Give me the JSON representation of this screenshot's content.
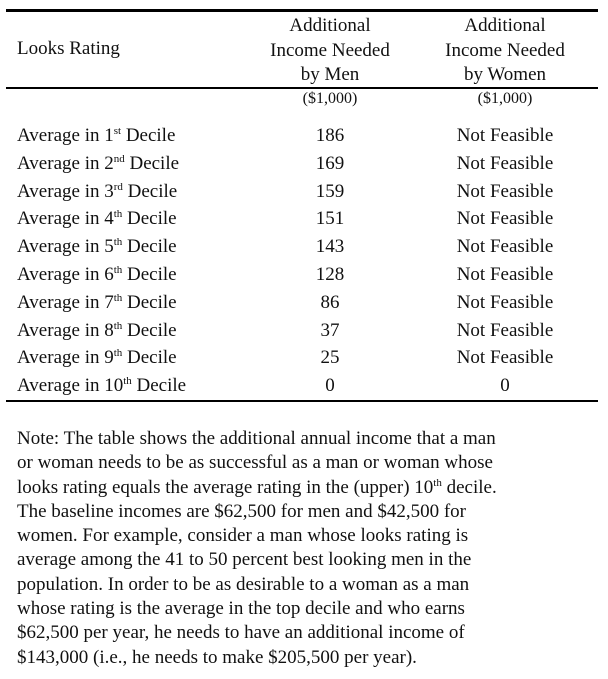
{
  "table": {
    "headers": {
      "looks": "Looks Rating",
      "men": [
        "Additional",
        "Income Needed",
        "by Men"
      ],
      "men_unit": "($1,000)",
      "women": [
        "Additional",
        "Income Needed",
        "by Women"
      ],
      "women_unit": "($1,000)"
    },
    "rows": [
      {
        "prefix": "Average in 1",
        "ord": "st",
        "suffix": " Decile",
        "men": "186",
        "women": "Not Feasible"
      },
      {
        "prefix": "Average in 2",
        "ord": "nd",
        "suffix": " Decile",
        "men": "169",
        "women": "Not Feasible"
      },
      {
        "prefix": "Average in 3",
        "ord": "rd",
        "suffix": " Decile",
        "men": "159",
        "women": "Not Feasible"
      },
      {
        "prefix": "Average in 4",
        "ord": "th",
        "suffix": " Decile",
        "men": "151",
        "women": "Not Feasible"
      },
      {
        "prefix": "Average in 5",
        "ord": "th",
        "suffix": " Decile",
        "men": "143",
        "women": "Not Feasible"
      },
      {
        "prefix": "Average in 6",
        "ord": "th",
        "suffix": " Decile",
        "men": "128",
        "women": "Not Feasible"
      },
      {
        "prefix": "Average in 7",
        "ord": "th",
        "suffix": " Decile",
        "men": "86",
        "women": "Not Feasible"
      },
      {
        "prefix": "Average in 8",
        "ord": "th",
        "suffix": " Decile",
        "men": "37",
        "women": "Not Feasible"
      },
      {
        "prefix": "Average in 9",
        "ord": "th",
        "suffix": " Decile",
        "men": "25",
        "women": "Not Feasible"
      },
      {
        "prefix": "Average in 10",
        "ord": "th",
        "suffix": " Decile",
        "men": "0",
        "women": "0"
      }
    ]
  },
  "note": {
    "line1": "Note:  The table shows the additional annual income that a man",
    "line2": "or woman needs to be as successful as a man or woman whose",
    "line3_pre": "looks rating equals the average rating in the (upper) 10",
    "line3_sup": "th",
    "line3_post": " decile.",
    "line4": "The baseline incomes are $62,500 for men and $42,500 for",
    "line5": "women.  For example, consider a man whose looks rating is",
    "line6": "average among the 41 to 50 percent best looking men in the",
    "line7": "population.  In order to be as desirable to a woman as a man",
    "line8": "whose rating is the average in the top decile and who earns",
    "line9": "$62,500 per year, he needs to have an additional income of",
    "line10": "$143,000 (i.e., he needs to make $205,500 per year)."
  }
}
